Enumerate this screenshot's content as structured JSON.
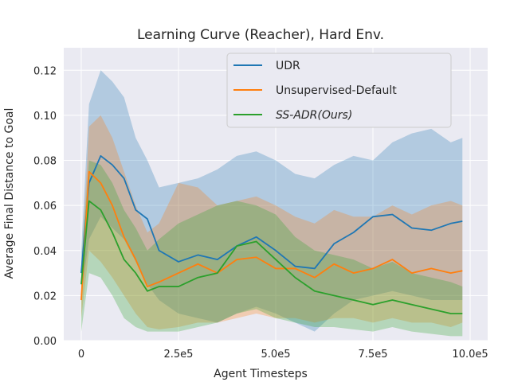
{
  "chart_data": {
    "type": "line",
    "title": "Learning Curve (Reacher), Hard Env.",
    "xlabel": "Agent Timesteps",
    "ylabel": "Average Final Distance to Goal",
    "xlim": [
      -45000,
      1045000
    ],
    "ylim": [
      0.0,
      0.13
    ],
    "x_ticks": [
      0,
      250000,
      500000,
      750000,
      1000000
    ],
    "x_tick_labels": [
      "0",
      "2.5e5",
      "5.0e5",
      "7.5e5",
      "10.0e5"
    ],
    "y_ticks": [
      0.0,
      0.02,
      0.04,
      0.06,
      0.08,
      0.1,
      0.12
    ],
    "y_tick_labels": [
      "0.00",
      "0.02",
      "0.04",
      "0.06",
      "0.08",
      "0.10",
      "0.12"
    ],
    "grid": true,
    "legend_position": "top-right",
    "background": "#eaeaf2",
    "series": [
      {
        "name": "UDR",
        "color": "#1f77b4",
        "x": [
          0,
          20000,
          50000,
          80000,
          110000,
          140000,
          170000,
          200000,
          250000,
          300000,
          350000,
          400000,
          450000,
          500000,
          550000,
          600000,
          650000,
          700000,
          750000,
          800000,
          850000,
          900000,
          950000,
          980000
        ],
        "y": [
          0.03,
          0.07,
          0.082,
          0.078,
          0.072,
          0.058,
          0.054,
          0.04,
          0.035,
          0.038,
          0.036,
          0.042,
          0.046,
          0.04,
          0.033,
          0.032,
          0.043,
          0.048,
          0.055,
          0.056,
          0.05,
          0.049,
          0.052,
          0.053
        ],
        "upper": [
          0.04,
          0.105,
          0.12,
          0.115,
          0.108,
          0.09,
          0.08,
          0.068,
          0.07,
          0.072,
          0.076,
          0.082,
          0.084,
          0.08,
          0.074,
          0.072,
          0.078,
          0.082,
          0.08,
          0.088,
          0.092,
          0.094,
          0.088,
          0.09
        ],
        "lower": [
          0.02,
          0.045,
          0.055,
          0.05,
          0.045,
          0.035,
          0.025,
          0.018,
          0.012,
          0.01,
          0.008,
          0.012,
          0.015,
          0.012,
          0.008,
          0.004,
          0.012,
          0.018,
          0.02,
          0.022,
          0.02,
          0.018,
          0.018,
          0.018
        ]
      },
      {
        "name": "Unsupervised-Default",
        "color": "#ff7f0e",
        "x": [
          0,
          20000,
          50000,
          80000,
          110000,
          140000,
          170000,
          200000,
          250000,
          300000,
          350000,
          400000,
          450000,
          500000,
          550000,
          600000,
          650000,
          700000,
          750000,
          800000,
          850000,
          900000,
          950000,
          980000
        ],
        "y": [
          0.018,
          0.075,
          0.07,
          0.06,
          0.046,
          0.036,
          0.024,
          0.026,
          0.03,
          0.034,
          0.03,
          0.036,
          0.037,
          0.032,
          0.032,
          0.028,
          0.034,
          0.03,
          0.032,
          0.036,
          0.03,
          0.032,
          0.03,
          0.031
        ],
        "upper": [
          0.03,
          0.095,
          0.1,
          0.09,
          0.075,
          0.06,
          0.048,
          0.052,
          0.07,
          0.068,
          0.06,
          0.062,
          0.064,
          0.06,
          0.055,
          0.052,
          0.058,
          0.055,
          0.055,
          0.06,
          0.056,
          0.06,
          0.062,
          0.06
        ],
        "lower": [
          0.01,
          0.04,
          0.035,
          0.028,
          0.02,
          0.012,
          0.006,
          0.005,
          0.006,
          0.008,
          0.008,
          0.01,
          0.012,
          0.01,
          0.01,
          0.008,
          0.01,
          0.01,
          0.008,
          0.01,
          0.008,
          0.008,
          0.006,
          0.008
        ]
      },
      {
        "name": "SS-ADR(Ours)",
        "color": "#2ca02c",
        "x": [
          0,
          20000,
          50000,
          80000,
          110000,
          140000,
          170000,
          200000,
          250000,
          300000,
          350000,
          400000,
          450000,
          500000,
          550000,
          600000,
          650000,
          700000,
          750000,
          800000,
          850000,
          900000,
          950000,
          980000
        ],
        "y": [
          0.025,
          0.062,
          0.058,
          0.048,
          0.036,
          0.03,
          0.022,
          0.024,
          0.024,
          0.028,
          0.03,
          0.042,
          0.044,
          0.036,
          0.028,
          0.022,
          0.02,
          0.018,
          0.016,
          0.018,
          0.016,
          0.014,
          0.012,
          0.012
        ],
        "upper": [
          0.035,
          0.08,
          0.078,
          0.07,
          0.058,
          0.05,
          0.04,
          0.045,
          0.052,
          0.056,
          0.06,
          0.062,
          0.06,
          0.056,
          0.046,
          0.04,
          0.038,
          0.036,
          0.032,
          0.035,
          0.03,
          0.028,
          0.026,
          0.024
        ],
        "lower": [
          0.004,
          0.03,
          0.028,
          0.02,
          0.01,
          0.006,
          0.004,
          0.004,
          0.004,
          0.006,
          0.008,
          0.012,
          0.014,
          0.01,
          0.008,
          0.006,
          0.006,
          0.005,
          0.004,
          0.006,
          0.004,
          0.003,
          0.002,
          0.002
        ]
      }
    ]
  }
}
